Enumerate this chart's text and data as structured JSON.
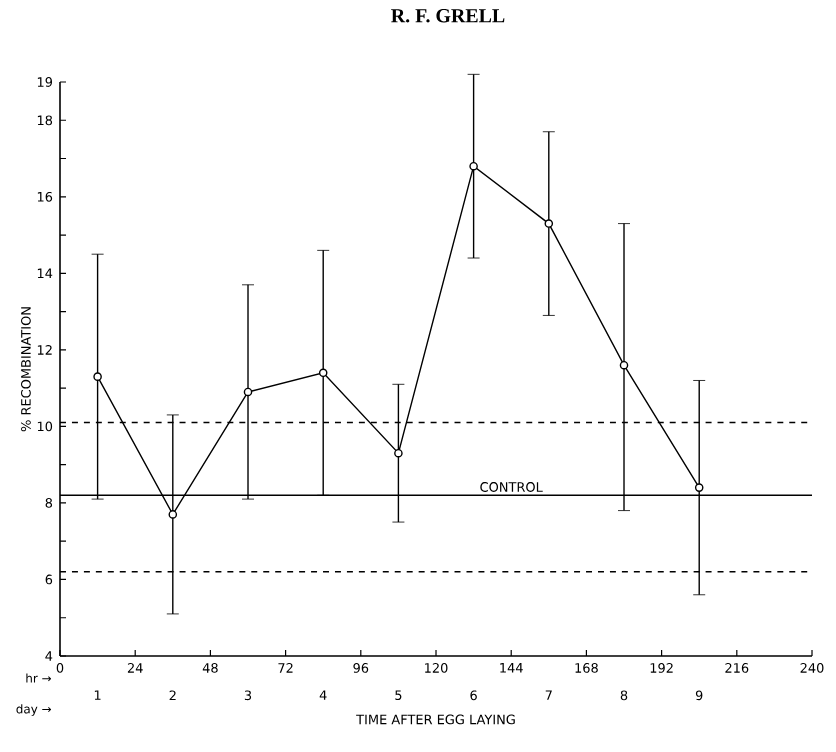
{
  "chart_data": {
    "type": "line",
    "title": "R. F. GRELL",
    "xlabel": "TIME AFTER EGG LAYING",
    "ylabel": "% RECOMBINATION",
    "x": [
      12,
      36,
      60,
      84,
      108,
      132,
      156,
      180,
      204
    ],
    "series": [
      {
        "color": "#000000",
        "values": [
          11.3,
          7.7,
          10.9,
          11.4,
          9.3,
          16.8,
          15.3,
          11.6,
          8.4
        ],
        "errors": [
          [
            8.1,
            14.5
          ],
          [
            5.1,
            10.3
          ],
          [
            8.1,
            13.7
          ],
          [
            8.2,
            14.6
          ],
          [
            7.5,
            11.1
          ],
          [
            14.4,
            19.2
          ],
          [
            12.9,
            17.7
          ],
          [
            7.8,
            15.3
          ],
          [
            5.6,
            11.2
          ]
        ]
      }
    ],
    "marker": "circle",
    "line_style": "solid",
    "grid": false,
    "xlim": [
      0,
      240
    ],
    "xticks": [
      0,
      24,
      48,
      72,
      96,
      120,
      144,
      168,
      192,
      216,
      240
    ],
    "x2lim": [
      0.5,
      10.5
    ],
    "x2ticks": [
      1,
      2,
      3,
      4,
      5,
      6,
      7,
      8,
      9
    ],
    "ylim": [
      4,
      19
    ],
    "yticks": [
      4,
      {
        "value": 5,
        "label": null
      },
      6,
      {
        "value": 7,
        "label": null
      },
      8,
      {
        "value": 9,
        "label": null
      },
      10,
      {
        "value": 11,
        "label": null
      },
      12,
      {
        "value": 13,
        "label": null
      },
      14,
      {
        "value": 15,
        "label": null
      },
      16,
      {
        "value": 17,
        "label": null
      },
      18,
      19
    ],
    "ref_lines": [
      {
        "axis": "y",
        "value": 10.1,
        "line_style": "dashed"
      },
      {
        "axis": "y",
        "value": 8.2,
        "label": "CONTROL",
        "line_style": "solid"
      },
      {
        "axis": "y",
        "value": 6.2,
        "line_style": "dashed"
      }
    ],
    "annotations": [
      "hr →",
      "day →"
    ]
  }
}
